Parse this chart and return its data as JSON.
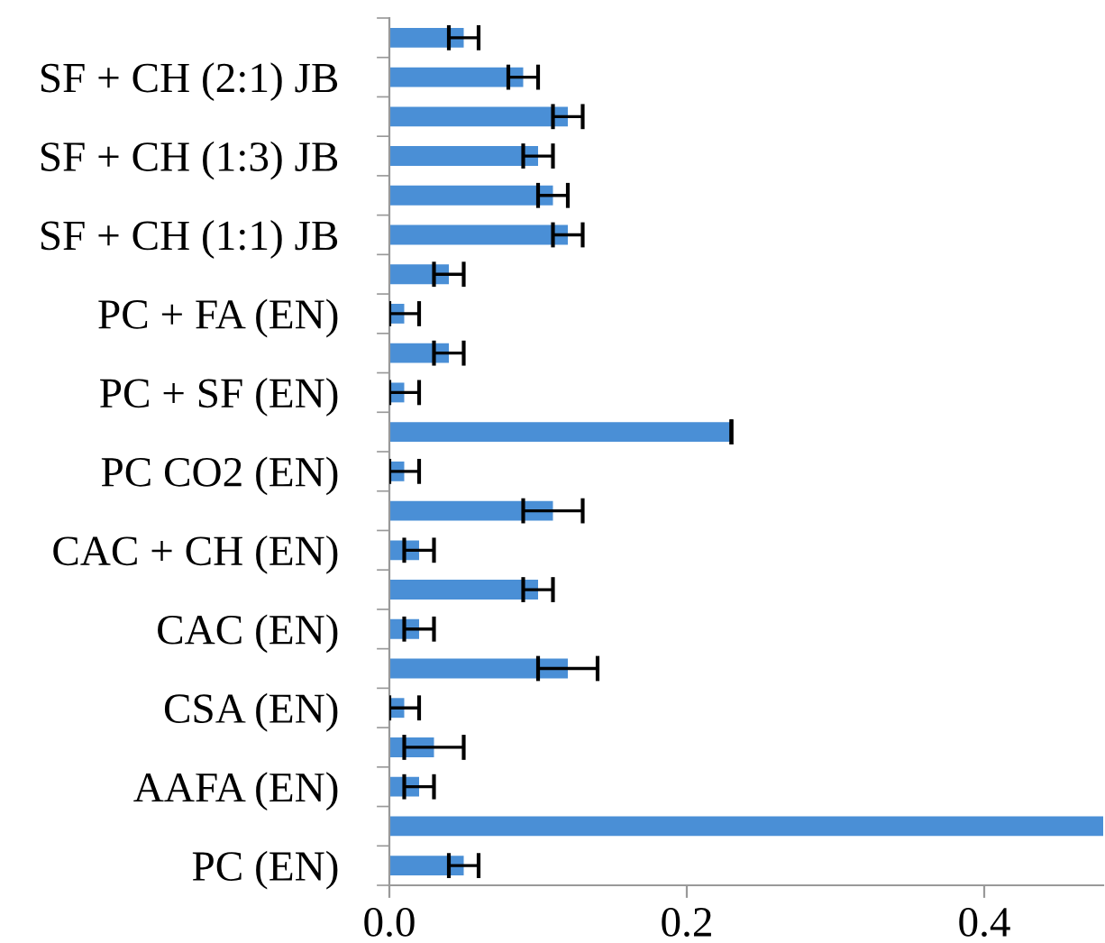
{
  "chart_data": {
    "type": "bar",
    "orientation": "horizontal",
    "categories": [
      null,
      "SF + CH (2:1) JB",
      null,
      "SF + CH (1:3) JB",
      null,
      "SF + CH (1:1) JB",
      null,
      "PC + FA (EN)",
      null,
      "PC + SF (EN)",
      null,
      "PC CO2 (EN)",
      null,
      "CAC + CH (EN)",
      null,
      "CAC (EN)",
      null,
      "CSA (EN)",
      null,
      "AAFA (EN)",
      null,
      "PC (EN)"
    ],
    "values": [
      0.05,
      0.09,
      0.12,
      0.1,
      0.11,
      0.12,
      0.04,
      0.01,
      0.04,
      0.01,
      0.23,
      0.01,
      0.11,
      0.02,
      0.1,
      0.02,
      0.12,
      0.01,
      0.03,
      0.02,
      0.48,
      0.05
    ],
    "errors": [
      0.01,
      0.01,
      0.01,
      0.01,
      0.01,
      0.01,
      0.01,
      0.01,
      0.01,
      0.01,
      0,
      0.01,
      0.02,
      0.01,
      0.01,
      0.01,
      0.02,
      0.01,
      0.02,
      0.01,
      null,
      0.01
    ],
    "color": "#4a8fd6",
    "xlim": [
      0,
      0.48
    ],
    "xticks": [
      {
        "value": 0,
        "label": "0.0"
      },
      {
        "value": 0.2,
        "label": "0.2"
      },
      {
        "value": 0.4,
        "label": "0.4"
      }
    ],
    "grid": false,
    "legend": false
  }
}
